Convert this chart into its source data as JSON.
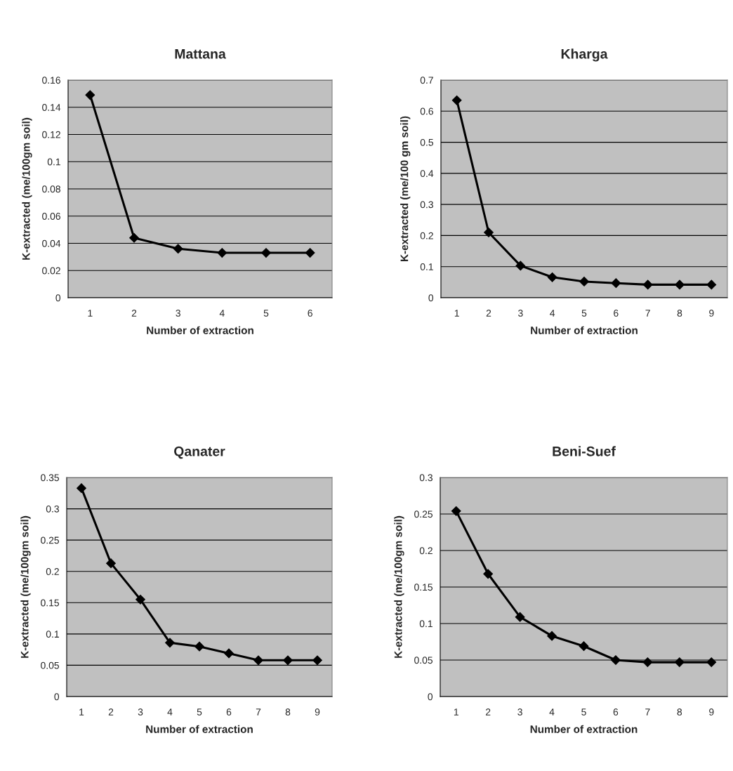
{
  "chart_data": [
    {
      "type": "line",
      "title": "Mattana",
      "xlabel": "Number of extraction",
      "ylabel": "K-extracted (me/100gm soil)",
      "categories": [
        "1",
        "2",
        "3",
        "4",
        "5",
        "6"
      ],
      "series": [
        {
          "color": "#000000",
          "values": [
            0.149,
            0.044,
            0.036,
            0.033,
            0.033,
            0.033
          ]
        }
      ],
      "ylim": [
        0,
        0.16
      ],
      "yticks": [
        0,
        0.02,
        0.04,
        0.06,
        0.08,
        0.1,
        0.12,
        0.14,
        0.16
      ],
      "grid": "y",
      "marker": "diamond",
      "line_style": "solid"
    },
    {
      "type": "line",
      "title": "Kharga",
      "xlabel": "Number of extraction",
      "ylabel": "K-extracted (me/100 gm soil)",
      "categories": [
        "1",
        "2",
        "3",
        "4",
        "5",
        "6",
        "7",
        "8",
        "9"
      ],
      "series": [
        {
          "color": "#000000",
          "values": [
            0.635,
            0.21,
            0.103,
            0.066,
            0.052,
            0.047,
            0.042,
            0.042,
            0.042
          ]
        }
      ],
      "ylim": [
        0,
        0.7
      ],
      "yticks": [
        0,
        0.1,
        0.2,
        0.3,
        0.4,
        0.5,
        0.6,
        0.7
      ],
      "grid": "y",
      "marker": "diamond",
      "line_style": "solid"
    },
    {
      "type": "line",
      "title": "Qanater",
      "xlabel": "Number of extraction",
      "ylabel": "K-extracted (me/100gm soil)",
      "categories": [
        "1",
        "2",
        "3",
        "4",
        "5",
        "6",
        "7",
        "8",
        "9"
      ],
      "series": [
        {
          "color": "#000000",
          "values": [
            0.333,
            0.213,
            0.155,
            0.086,
            0.08,
            0.069,
            0.058,
            0.058,
            0.058
          ]
        }
      ],
      "ylim": [
        0,
        0.35
      ],
      "yticks": [
        0,
        0.05,
        0.1,
        0.15,
        0.2,
        0.25,
        0.3,
        0.35
      ],
      "grid": "y",
      "marker": "diamond",
      "line_style": "solid"
    },
    {
      "type": "line",
      "title": "Beni-Suef",
      "xlabel": "Number of extraction",
      "ylabel": "K-extracted (me/100gm soil)",
      "categories": [
        "1",
        "2",
        "3",
        "4",
        "5",
        "6",
        "7",
        "8",
        "9"
      ],
      "series": [
        {
          "color": "#000000",
          "values": [
            0.254,
            0.168,
            0.109,
            0.083,
            0.069,
            0.05,
            0.047,
            0.047,
            0.047
          ]
        }
      ],
      "ylim": [
        0,
        0.3
      ],
      "yticks": [
        0,
        0.05,
        0.1,
        0.15,
        0.2,
        0.25,
        0.3
      ],
      "grid": "y",
      "marker": "diamond",
      "line_style": "solid"
    }
  ]
}
